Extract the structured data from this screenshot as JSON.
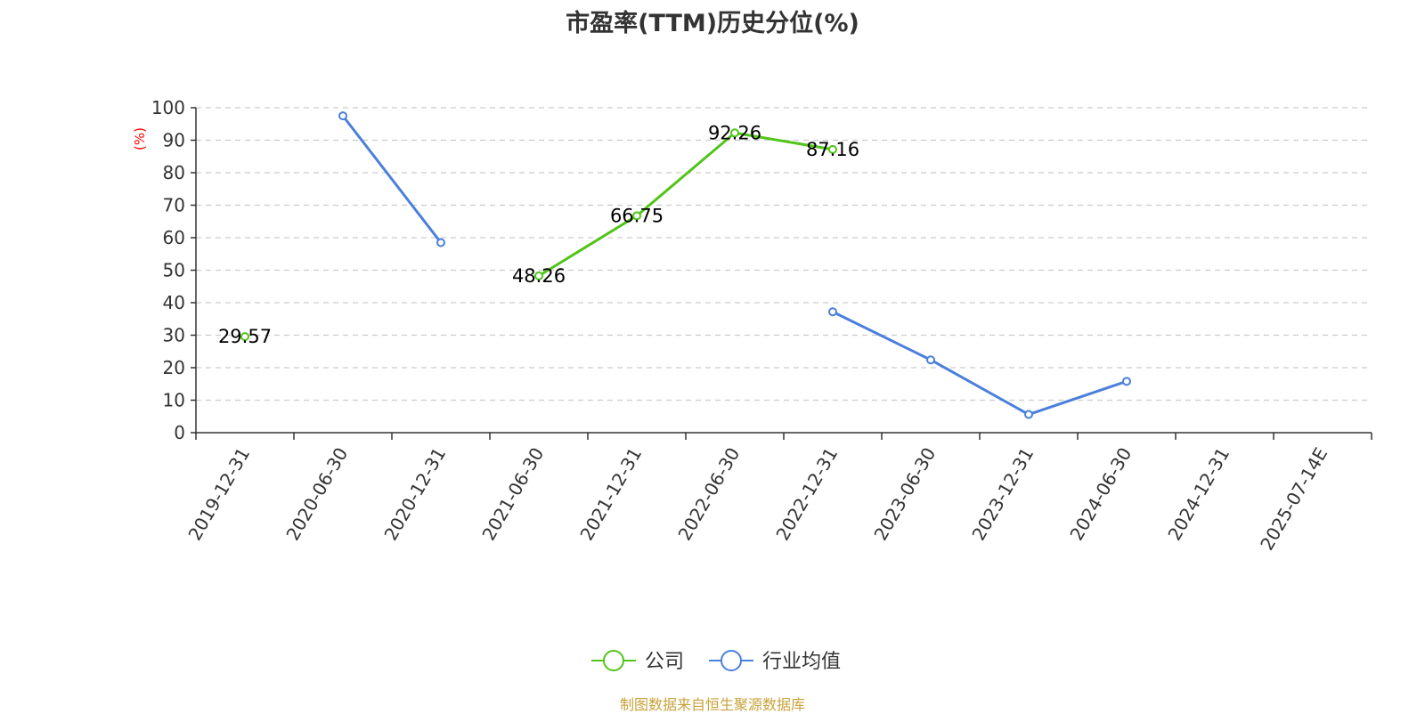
{
  "chart_data": {
    "type": "line",
    "title": "市盈率(TTM)历史分位(%)",
    "ylabel": "(%)",
    "ylim": [
      0,
      100
    ],
    "yticks": [
      0,
      10,
      20,
      30,
      40,
      50,
      60,
      70,
      80,
      90,
      100
    ],
    "categories": [
      "2019-12-31",
      "2020-06-30",
      "2020-12-31",
      "2021-06-30",
      "2021-12-31",
      "2022-06-30",
      "2022-12-31",
      "2023-06-30",
      "2023-12-31",
      "2024-06-30",
      "2024-12-31",
      "2025-07-14E"
    ],
    "grid": true,
    "legend_position": "bottom",
    "series": [
      {
        "name": "公司",
        "color": "#52c41a",
        "show_labels": true,
        "points": [
          {
            "x": "2019-12-31",
            "y": 29.57,
            "label": "29.57"
          },
          {
            "x": "2021-06-30",
            "y": 48.26,
            "label": "48.26"
          },
          {
            "x": "2021-12-31",
            "y": 66.75,
            "label": "66.75"
          },
          {
            "x": "2022-06-30",
            "y": 92.26,
            "label": "92.26"
          },
          {
            "x": "2022-12-31",
            "y": 87.16,
            "label": "87.16"
          }
        ]
      },
      {
        "name": "行业均值",
        "color": "#4a7fdc",
        "show_labels": false,
        "points": [
          {
            "x": "2020-06-30",
            "y": 97.5
          },
          {
            "x": "2020-12-31",
            "y": 58.5
          },
          {
            "x": "2022-12-31",
            "y": 37.2
          },
          {
            "x": "2023-06-30",
            "y": 22.4
          },
          {
            "x": "2023-12-31",
            "y": 5.6
          },
          {
            "x": "2024-06-30",
            "y": 15.8
          }
        ]
      }
    ],
    "source": "制图数据来自恒生聚源数据库"
  }
}
